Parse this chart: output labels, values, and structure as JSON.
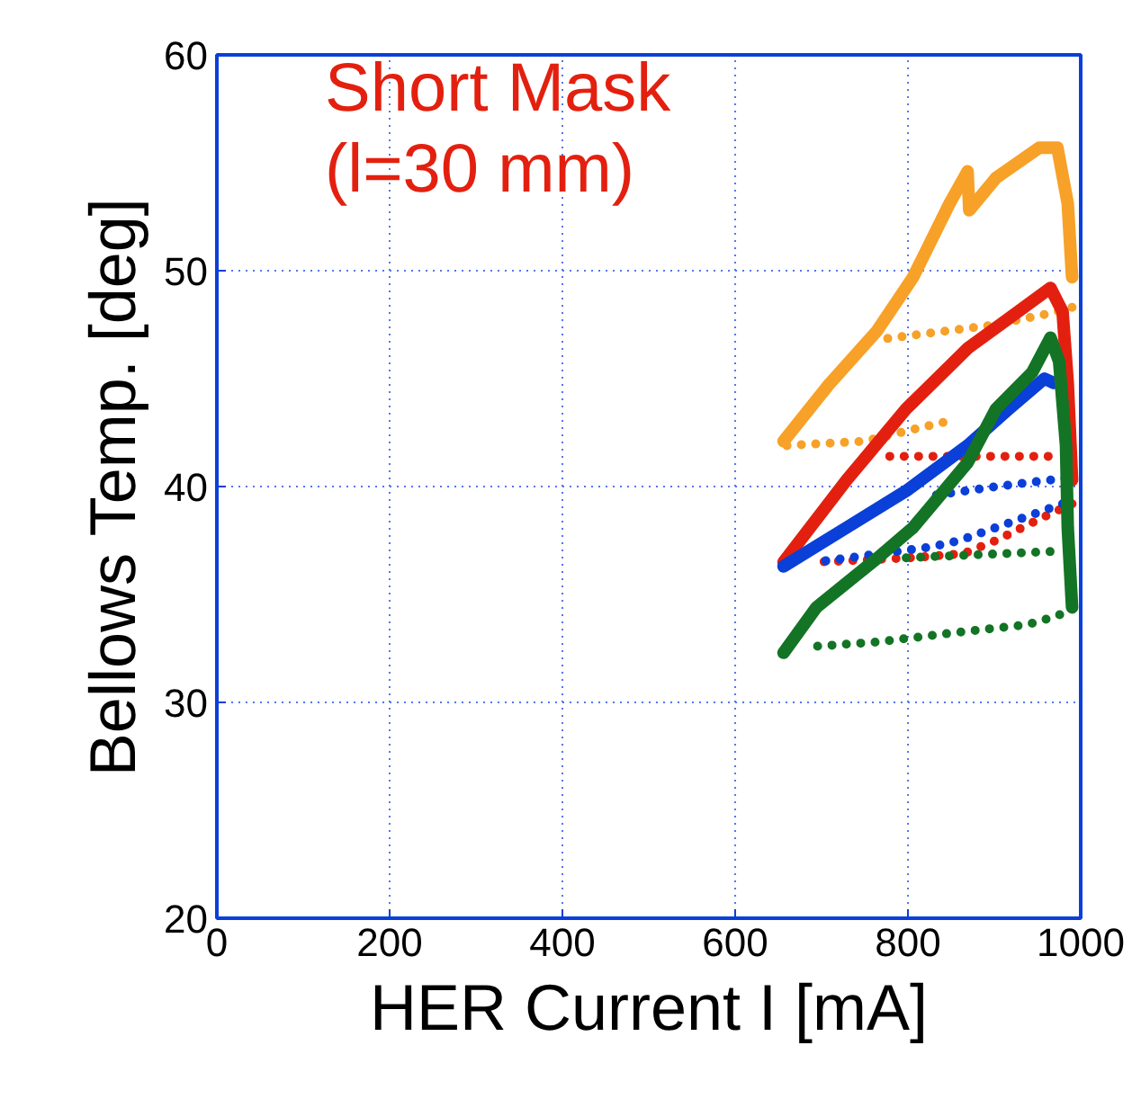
{
  "chart_data": {
    "type": "line",
    "xlabel": "HER Current I [mA]",
    "ylabel": "Bellows Temp. [deg]",
    "annotations": [
      "Short Mask",
      "(l=30 mm)"
    ],
    "xlim": [
      0,
      1000
    ],
    "ylim": [
      20,
      60
    ],
    "xticks": [
      0,
      200,
      400,
      600,
      800,
      1000
    ],
    "yticks": [
      20,
      30,
      40,
      50,
      60
    ],
    "grid": true,
    "series": [
      {
        "color": "#f7a128",
        "line_style": "solid",
        "x": [
          656,
          708,
          764,
          806,
          848,
          869,
          871,
          902,
          952,
          973,
          985,
          990
        ],
        "values": [
          42.1,
          44.7,
          47.2,
          49.7,
          53.1,
          54.6,
          52.8,
          54.3,
          55.7,
          55.7,
          53.1,
          49.7
        ]
      },
      {
        "color": "#f7a128",
        "line_style": "dotted",
        "x": [
          990,
          973,
          902,
          765
        ],
        "values": [
          48.3,
          48.1,
          47.5,
          46.8
        ]
      },
      {
        "color": "#f7a128",
        "line_style": "dotted",
        "x": [
          660,
          750,
          812,
          854
        ],
        "values": [
          41.9,
          42.1,
          42.7,
          43.1
        ]
      },
      {
        "color": "#e3200f",
        "line_style": "solid",
        "x": [
          656,
          729,
          798,
          869,
          917,
          965,
          979,
          985,
          990
        ],
        "values": [
          36.5,
          40.3,
          43.6,
          46.4,
          47.8,
          49.2,
          48.1,
          44.8,
          40.3
        ]
      },
      {
        "color": "#e3200f",
        "line_style": "dotted",
        "x": [
          990,
          958,
          902,
          865,
          806,
          694
        ],
        "values": [
          39.2,
          38.6,
          37.5,
          36.9,
          36.7,
          36.5
        ]
      },
      {
        "color": "#e3200f",
        "line_style": "dotted",
        "x": [
          779,
          973
        ],
        "values": [
          41.4,
          41.4
        ]
      },
      {
        "color": "#0a3fd8",
        "line_style": "solid",
        "x": [
          656,
          729,
          798,
          869,
          917,
          958,
          969
        ],
        "values": [
          36.3,
          38.1,
          39.8,
          41.9,
          43.6,
          45,
          44.8
        ]
      },
      {
        "color": "#0a3fd8",
        "line_style": "dotted",
        "x": [
          833,
          902,
          985
        ],
        "values": [
          39.6,
          40,
          40.4
        ]
      },
      {
        "color": "#0a3fd8",
        "line_style": "dotted",
        "x": [
          979,
          902,
          860,
          827,
          694
        ],
        "values": [
          39.2,
          38.1,
          37.5,
          37.2,
          36.5
        ]
      },
      {
        "color": "#137425",
        "line_style": "solid",
        "x": [
          656,
          694,
          765,
          806,
          869,
          902,
          944,
          965,
          975,
          983,
          985,
          990
        ],
        "values": [
          32.3,
          34.4,
          36.7,
          38.1,
          41.1,
          43.6,
          45.3,
          46.9,
          45.8,
          41.9,
          38.1,
          34.4
        ]
      },
      {
        "color": "#137425",
        "line_style": "dotted",
        "x": [
          798,
          973
        ],
        "values": [
          36.7,
          37
        ]
      },
      {
        "color": "#137425",
        "line_style": "dotted",
        "x": [
          990,
          973,
          938,
          869,
          765,
          694
        ],
        "values": [
          34.4,
          34,
          33.6,
          33.3,
          32.8,
          32.6
        ]
      }
    ]
  }
}
